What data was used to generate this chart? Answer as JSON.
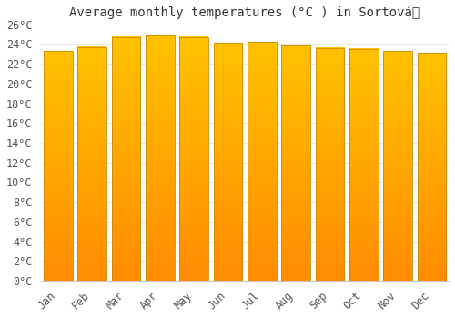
{
  "title": "Average monthly temperatures (°C ) in Sortová",
  "months": [
    "Jan",
    "Feb",
    "Mar",
    "Apr",
    "May",
    "Jun",
    "Jul",
    "Aug",
    "Sep",
    "Oct",
    "Nov",
    "Dec"
  ],
  "values": [
    23.3,
    23.7,
    24.7,
    24.9,
    24.7,
    24.1,
    24.2,
    23.9,
    23.6,
    23.5,
    23.3,
    23.1
  ],
  "bar_color_top": "#FFC200",
  "bar_color_bottom": "#FF8C00",
  "bar_edge_color": "#CC8800",
  "background_color": "#FFFFFF",
  "grid_color": "#DDDDDD",
  "ylim": [
    0,
    26
  ],
  "ytick_step": 2,
  "title_fontsize": 10,
  "tick_fontsize": 8.5,
  "font_family": "monospace"
}
